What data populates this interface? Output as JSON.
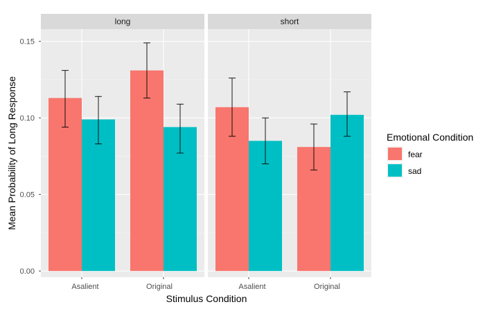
{
  "chart_data": {
    "type": "bar",
    "title": "",
    "xlabel": "Stimulus Condition",
    "ylabel": "Mean Probability of Long Response",
    "ylim": [
      -0.004,
      0.158
    ],
    "yticks": [
      0.0,
      0.05,
      0.1,
      0.15
    ],
    "ytick_labels": [
      "0.00",
      "0.05",
      "0.10",
      "0.15"
    ],
    "categories": [
      "Asalient",
      "Original"
    ],
    "legend": {
      "title": "Emotional Condition",
      "entries": [
        {
          "name": "fear",
          "color": "#F8766D"
        },
        {
          "name": "sad",
          "color": "#00BFC4"
        }
      ]
    },
    "facets": [
      {
        "label": "long",
        "series": [
          {
            "name": "fear",
            "values": [
              0.113,
              0.131
            ],
            "err_low": [
              0.094,
              0.113
            ],
            "err_high": [
              0.131,
              0.149
            ]
          },
          {
            "name": "sad",
            "values": [
              0.099,
              0.094
            ],
            "err_low": [
              0.083,
              0.077
            ],
            "err_high": [
              0.114,
              0.109
            ]
          }
        ]
      },
      {
        "label": "short",
        "series": [
          {
            "name": "fear",
            "values": [
              0.107,
              0.081
            ],
            "err_low": [
              0.088,
              0.066
            ],
            "err_high": [
              0.126,
              0.096
            ]
          },
          {
            "name": "sad",
            "values": [
              0.085,
              0.102
            ],
            "err_low": [
              0.07,
              0.088
            ],
            "err_high": [
              0.1,
              0.117
            ]
          }
        ]
      }
    ]
  }
}
